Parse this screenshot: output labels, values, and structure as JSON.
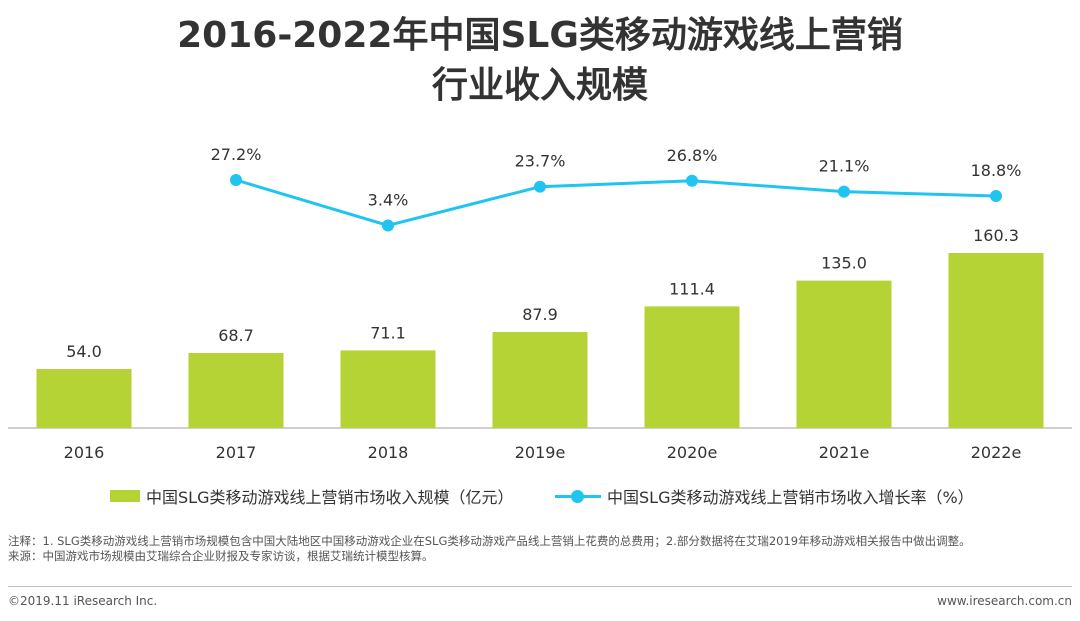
{
  "title_line1": "2016-2022年中国SLG类移动游戏线上营销",
  "title_line2": "行业收入规模",
  "chart_data": {
    "type": "bar",
    "categories": [
      "2016",
      "2017",
      "2018",
      "2019e",
      "2020e",
      "2021e",
      "2022e"
    ],
    "series": [
      {
        "name": "中国SLG类移动游戏线上营销市场收入规模（亿元）",
        "type": "bar",
        "values": [
          54.0,
          68.7,
          71.1,
          87.9,
          111.4,
          135.0,
          160.3
        ],
        "labels": [
          "54.0",
          "68.7",
          "71.1",
          "87.9",
          "111.4",
          "135.0",
          "160.3"
        ],
        "color": "#b5d335"
      },
      {
        "name": "中国SLG类移动游戏线上营销市场收入增长率（%）",
        "type": "line",
        "values": [
          null,
          27.2,
          3.4,
          23.7,
          26.8,
          21.1,
          18.8
        ],
        "labels": [
          "",
          "27.2%",
          "3.4%",
          "23.7%",
          "26.8%",
          "21.1%",
          "18.8%"
        ],
        "color": "#20c4f0"
      }
    ],
    "grid": false,
    "legend": "bottom"
  },
  "notes": {
    "line1": "注释：1. SLG类移动游戏线上营销市场规模包含中国大陆地区中国移动游戏企业在SLG类移动游戏产品线上营销上花费的总费用；2.部分数据将在艾瑞2019年移动游戏相关报告中做出调整。",
    "line2": "来源：中国游戏市场规模由艾瑞综合企业财报及专家访谈，根据艾瑞统计模型核算。"
  },
  "footer": {
    "copyright": "©2019.11 iResearch Inc.",
    "website": "www.iresearch.com.cn"
  }
}
